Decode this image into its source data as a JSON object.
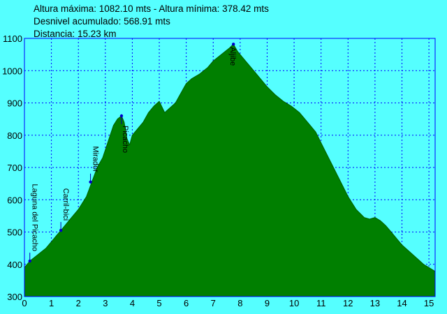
{
  "header": {
    "line1": "Altura máxima: 1082.10 mts - Altura mínima: 378.42 mts",
    "line2": "Desnivel acumulado: 568.91 mts",
    "line3": "Distancia: 15.23 km"
  },
  "chart_data": {
    "type": "area",
    "title": "",
    "xlabel": "",
    "ylabel": "",
    "xlim": [
      0,
      15.23
    ],
    "ylim": [
      300,
      1100
    ],
    "grid": true,
    "x_ticks": [
      0,
      1,
      2,
      3,
      4,
      5,
      6,
      7,
      8,
      9,
      10,
      11,
      12,
      13,
      14,
      15
    ],
    "y_ticks": [
      300,
      400,
      500,
      600,
      700,
      800,
      900,
      1000,
      1100
    ],
    "colors": {
      "background": "#55ffff",
      "fill": "#007f00",
      "grid": "#0000ff",
      "axis": "#0000ff"
    },
    "series": [
      {
        "x": [
          0,
          0.2,
          0.5,
          0.8,
          1.0,
          1.2,
          1.4,
          1.7,
          2.0,
          2.3,
          2.5,
          2.7,
          2.9,
          3.1,
          3.3,
          3.45,
          3.6,
          3.7,
          3.8,
          3.9,
          4.0,
          4.2,
          4.4,
          4.6,
          4.8,
          5.0,
          5.2,
          5.4,
          5.6,
          5.8,
          6.0,
          6.2,
          6.5,
          6.8,
          7.0,
          7.3,
          7.6,
          7.75,
          7.9,
          8.1,
          8.4,
          8.7,
          9.0,
          9.3,
          9.6,
          9.9,
          10.2,
          10.5,
          10.8,
          11.1,
          11.4,
          11.7,
          12.0,
          12.3,
          12.6,
          12.8,
          13.0,
          13.2,
          13.4,
          13.6,
          13.8,
          14.0,
          14.2,
          14.4,
          14.6,
          14.8,
          15.0,
          15.23
        ],
        "y": [
          390,
          410,
          430,
          450,
          470,
          490,
          510,
          540,
          570,
          610,
          655,
          700,
          730,
          780,
          830,
          850,
          860,
          840,
          790,
          770,
          800,
          820,
          840,
          870,
          890,
          905,
          870,
          885,
          900,
          930,
          960,
          975,
          990,
          1010,
          1030,
          1050,
          1070,
          1082,
          1060,
          1040,
          1010,
          980,
          950,
          925,
          905,
          890,
          870,
          840,
          810,
          760,
          710,
          660,
          610,
          570,
          545,
          540,
          545,
          535,
          520,
          500,
          480,
          460,
          445,
          430,
          415,
          400,
          390,
          378
        ]
      }
    ],
    "waypoints": [
      {
        "name": "Laguna del Picacho",
        "x": 0.2,
        "y": 410
      },
      {
        "name": "Carril-bici",
        "x": 1.35,
        "y": 505
      },
      {
        "name": "Mirador",
        "x": 2.45,
        "y": 655
      },
      {
        "name": "Picacho",
        "x": 3.6,
        "y": 860
      },
      {
        "name": "Aljibe",
        "x": 7.75,
        "y": 1082
      }
    ]
  }
}
